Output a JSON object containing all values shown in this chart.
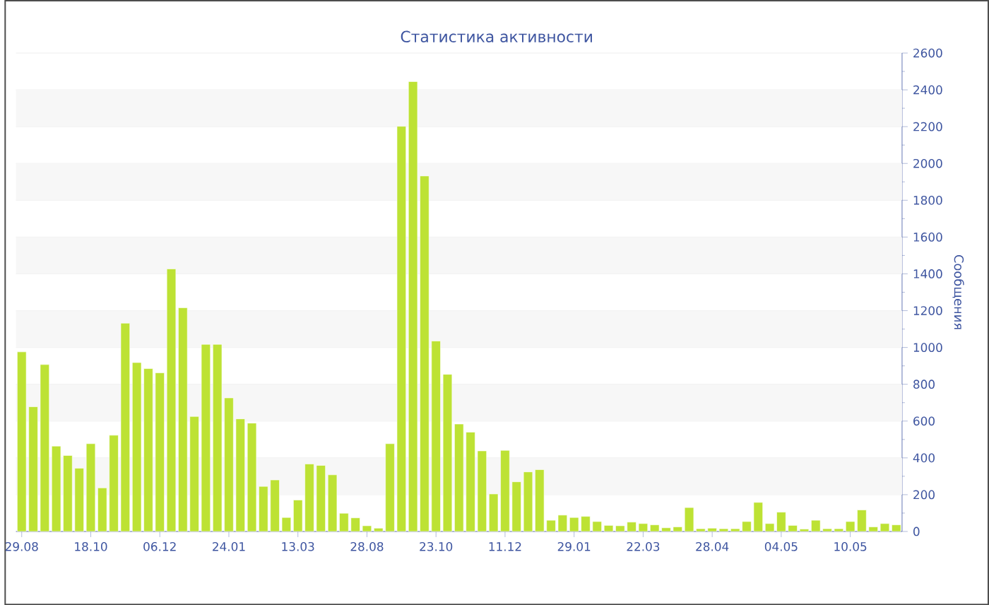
{
  "chart_data": {
    "type": "bar",
    "title": "Статистика активности",
    "ylabel": "Сообщения",
    "categories": [
      "29.08",
      null,
      null,
      null,
      null,
      null,
      "18.10",
      null,
      null,
      null,
      null,
      null,
      "06.12",
      null,
      null,
      null,
      null,
      null,
      "24.01",
      null,
      null,
      null,
      null,
      null,
      "13.03",
      null,
      null,
      null,
      null,
      null,
      "28.08",
      null,
      null,
      null,
      null,
      null,
      "23.10",
      null,
      null,
      null,
      null,
      null,
      "11.12",
      null,
      null,
      null,
      null,
      null,
      "29.01",
      null,
      null,
      null,
      null,
      null,
      "22.03",
      null,
      null,
      null,
      null,
      null,
      "28.04",
      null,
      null,
      null,
      null,
      null,
      "04.05",
      null,
      null,
      null,
      null,
      null,
      "10.05",
      null,
      null,
      null,
      null
    ],
    "values": [
      976,
      678,
      907,
      464,
      413,
      344,
      477,
      237,
      523,
      1132,
      918,
      885,
      862,
      1427,
      1216,
      625,
      1017,
      1017,
      726,
      612,
      589,
      245,
      280,
      76,
      171,
      367,
      359,
      308,
      99,
      74,
      31,
      18,
      477,
      2202,
      2445,
      1932,
      1035,
      854,
      584,
      540,
      438,
      204,
      441,
      270,
      324,
      336,
      61,
      89,
      76,
      82,
      54,
      33,
      31,
      51,
      43,
      36,
      20,
      25,
      130,
      15,
      18,
      15,
      15,
      54,
      158,
      43,
      105,
      33,
      13,
      61,
      15,
      15,
      54,
      117,
      25,
      43,
      36
    ],
    "color": "#bde234",
    "ylim": [
      0,
      2600
    ],
    "yticks": [
      0,
      200,
      400,
      600,
      800,
      1000,
      1200,
      1400,
      1600,
      1800,
      2000,
      2200,
      2400,
      2600
    ],
    "grid": "y"
  }
}
